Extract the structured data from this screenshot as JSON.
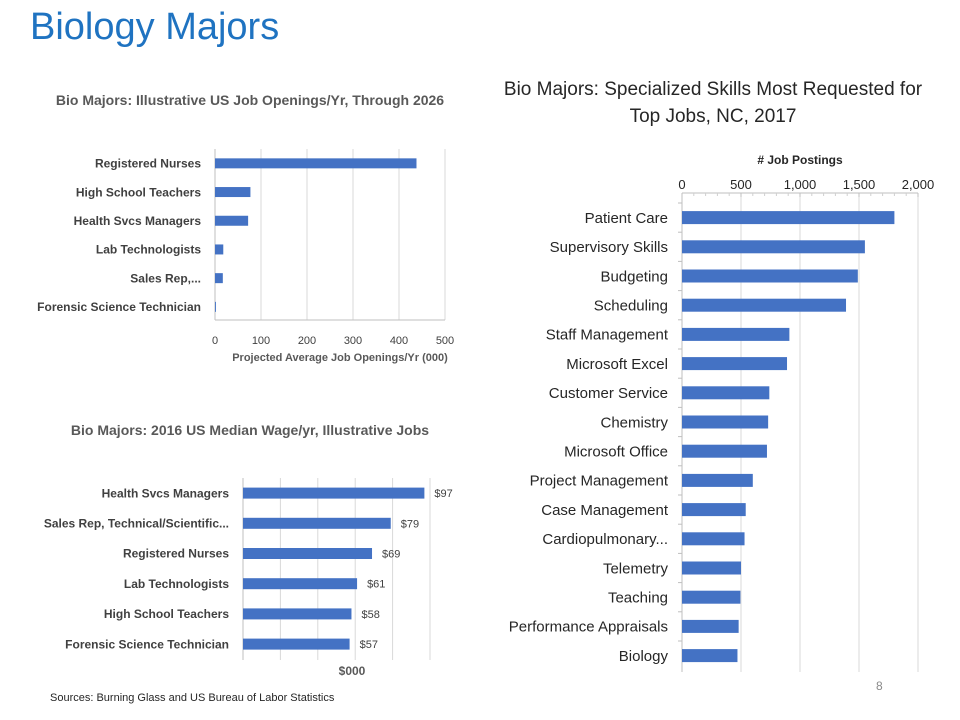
{
  "page": {
    "title": "Biology Majors",
    "sources": "Sources: Burning Glass and US Bureau of Labor Statistics",
    "page_number": "8"
  },
  "colors": {
    "bar": "#4472c4",
    "title": "#1f73c1",
    "grid": "#d9d9d9"
  },
  "chart_data": [
    {
      "type": "bar",
      "orientation": "horizontal",
      "title": "Bio Majors: Illustrative US Job Openings/Yr, Through 2026",
      "xlabel": "Projected Average Job Openings/Yr (000)",
      "ylabel": "",
      "categories": [
        "Registered Nurses",
        "High School Teachers",
        "Health Svcs Managers",
        "Lab Technologists",
        "Sales Rep,...",
        "Forensic Science Technician"
      ],
      "values": [
        438,
        77,
        72,
        18,
        17,
        2
      ],
      "xlim": [
        0,
        500
      ],
      "xticks": [
        0,
        100,
        200,
        300,
        400,
        500
      ],
      "grid": true
    },
    {
      "type": "bar",
      "orientation": "horizontal",
      "title": "Bio Majors: 2016 US Median Wage/yr, Illustrative Jobs",
      "xlabel": "$000",
      "ylabel": "",
      "categories": [
        "Health Svcs Managers",
        "Sales Rep, Technical/Scientific...",
        "Registered Nurses",
        "Lab Technologists",
        "High School Teachers",
        "Forensic Science Technician"
      ],
      "values": [
        97,
        79,
        69,
        61,
        58,
        57
      ],
      "data_labels": [
        "$97",
        "$79",
        "$69",
        "$61",
        "$58",
        "$57"
      ],
      "xlim": [
        0,
        100
      ],
      "grid": true
    },
    {
      "type": "bar",
      "orientation": "horizontal",
      "title": "Bio Majors: Specialized Skills Most Requested for Top Jobs, NC, 2017",
      "xlabel": "# Job Postings",
      "axis_position": "top",
      "categories": [
        "Patient Care",
        "Supervisory Skills",
        "Budgeting",
        "Scheduling",
        "Staff Management",
        "Microsoft Excel",
        "Customer Service",
        "Chemistry",
        "Microsoft Office",
        "Project Management",
        "Case Management",
        "Cardiopulmonary...",
        "Telemetry",
        "Teaching",
        "Performance Appraisals",
        "Biology"
      ],
      "values": [
        1800,
        1550,
        1490,
        1390,
        910,
        890,
        740,
        730,
        720,
        600,
        540,
        530,
        500,
        495,
        480,
        470
      ],
      "xlim": [
        0,
        2000
      ],
      "xticks": [
        0,
        500,
        1000,
        1500,
        2000
      ],
      "xtick_labels": [
        "0",
        "500",
        "1,000",
        "1,500",
        "2,000"
      ],
      "grid": true
    }
  ]
}
